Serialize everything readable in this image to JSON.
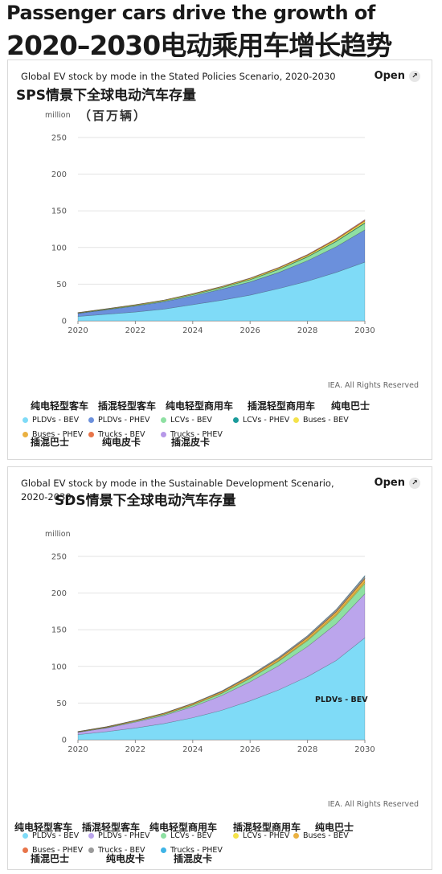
{
  "headline": {
    "line1": "Passenger cars drive the growth of",
    "line2": "2020–2030电动乘用车增长趋势"
  },
  "open_label": "Open",
  "open_icon": "external-link-icon",
  "rights": "IEA. All Rights Reserved",
  "chart_data": [
    {
      "type": "area",
      "title": "Global EV stock by mode in the Stated Policies Scenario, 2020-2030",
      "title_zh": "SPS情景下全球电动汽车存量",
      "ylabel": "million",
      "ylabel_zh": "（百万辆）",
      "stacked": true,
      "x": [
        2020,
        2021,
        2022,
        2023,
        2024,
        2025,
        2026,
        2027,
        2028,
        2029,
        2030
      ],
      "xticks": [
        "2020",
        "2022",
        "2024",
        "2026",
        "2028",
        "2030"
      ],
      "ylim": [
        0,
        250
      ],
      "yticks": [
        "0",
        "50",
        "100",
        "150",
        "200",
        "250"
      ],
      "grid": true,
      "legend_position": "bottom",
      "series": [
        {
          "name": "PLDVs - BEV",
          "color": "#7fdbf7",
          "values": [
            6,
            9,
            12,
            16,
            22,
            28,
            35,
            44,
            54,
            66,
            80
          ]
        },
        {
          "name": "PLDVs - PHEV",
          "color": "#6b90dc",
          "values": [
            4,
            6,
            8,
            10,
            12,
            15,
            18,
            22,
            28,
            35,
            44
          ]
        },
        {
          "name": "LCVs - BEV",
          "color": "#8ee0a2",
          "values": [
            0.4,
            0.6,
            0.8,
            1,
            1.5,
            2,
            3,
            4,
            5,
            7,
            9
          ]
        },
        {
          "name": "LCVs - PHEV",
          "color": "#1a9b9b",
          "values": [
            0.1,
            0.1,
            0.2,
            0.2,
            0.3,
            0.3,
            0.4,
            0.5,
            0.6,
            0.7,
            0.8
          ]
        },
        {
          "name": "Buses - BEV",
          "color": "#f4e24a",
          "values": [
            0.6,
            0.7,
            0.8,
            0.9,
            1,
            1.1,
            1.3,
            1.5,
            1.7,
            2,
            2.3
          ]
        },
        {
          "name": "Buses - PHEV",
          "color": "#eab142",
          "values": [
            0.05,
            0.05,
            0.06,
            0.07,
            0.08,
            0.09,
            0.1,
            0.12,
            0.14,
            0.16,
            0.2
          ]
        },
        {
          "name": "Trucks - BEV",
          "color": "#e8754a",
          "values": [
            0.05,
            0.05,
            0.1,
            0.1,
            0.2,
            0.3,
            0.5,
            0.7,
            0.9,
            1.2,
            1.5
          ]
        },
        {
          "name": "Trucks - PHEV",
          "color": "#b698e8",
          "values": [
            0.02,
            0.02,
            0.03,
            0.04,
            0.05,
            0.06,
            0.08,
            0.1,
            0.12,
            0.15,
            0.2
          ]
        }
      ],
      "legend_zh_top": [
        "纯电轻型客车",
        "插混轻型客车",
        "纯电轻型商用车",
        "插混轻型商用车",
        "纯电巴士"
      ],
      "legend_zh_bottom": [
        "插混巴士",
        "纯电皮卡",
        "插混皮卡"
      ]
    },
    {
      "type": "area",
      "title": "Global EV stock by mode in the Sustainable Development Scenario, 2020-2030",
      "title_zh": "SDS情景下全球电动汽车存量",
      "ylabel": "million",
      "stacked": true,
      "x": [
        2020,
        2021,
        2022,
        2023,
        2024,
        2025,
        2026,
        2027,
        2028,
        2029,
        2030
      ],
      "xticks": [
        "2020",
        "2022",
        "2024",
        "2026",
        "2028",
        "2030"
      ],
      "ylim": [
        0,
        250
      ],
      "yticks": [
        "0",
        "50",
        "100",
        "150",
        "200",
        "250"
      ],
      "grid": true,
      "legend_position": "bottom",
      "annotation": "PLDVs - BEV",
      "series": [
        {
          "name": "PLDVs - BEV",
          "color": "#7fdbf7",
          "values": [
            7,
            11,
            16,
            22,
            30,
            40,
            53,
            68,
            86,
            108,
            139
          ]
        },
        {
          "name": "PLDVs - PHEV",
          "color": "#bba5ec",
          "values": [
            3,
            5,
            8,
            11,
            15,
            20,
            26,
            33,
            41,
            50,
            60
          ]
        },
        {
          "name": "LCVs - BEV",
          "color": "#8ee0a2",
          "values": [
            0.4,
            0.7,
            1,
            1.5,
            2.2,
            3,
            4.5,
            6,
            8,
            11,
            14
          ]
        },
        {
          "name": "LCVs - PHEV",
          "color": "#f4e24a",
          "values": [
            0.1,
            0.1,
            0.2,
            0.3,
            0.4,
            0.5,
            0.7,
            0.9,
            1.2,
            1.6,
            2
          ]
        },
        {
          "name": "Buses - BEV",
          "color": "#eab142",
          "values": [
            0.6,
            0.8,
            1,
            1.2,
            1.5,
            1.8,
            2.2,
            2.6,
            3.1,
            3.7,
            4.5
          ]
        },
        {
          "name": "Buses - PHEV",
          "color": "#e8754a",
          "values": [
            0.05,
            0.06,
            0.08,
            0.1,
            0.12,
            0.15,
            0.2,
            0.25,
            0.3,
            0.4,
            0.5
          ]
        },
        {
          "name": "Trucks - BEV",
          "color": "#9a9a9a",
          "values": [
            0.05,
            0.1,
            0.2,
            0.3,
            0.5,
            0.8,
            1.2,
            1.6,
            2,
            2.6,
            3.2
          ]
        },
        {
          "name": "Trucks - PHEV",
          "color": "#3fb4e6",
          "values": [
            0.02,
            0.03,
            0.05,
            0.07,
            0.1,
            0.14,
            0.2,
            0.3,
            0.4,
            0.5,
            0.7
          ]
        }
      ],
      "legend_zh_top": [
        "纯电轻型客车",
        "插混轻型客车",
        "纯电轻型商用车",
        "插混轻型商用车",
        "纯电巴士"
      ],
      "legend_zh_bottom": [
        "插混巴士",
        "纯电皮卡",
        "插混皮卡"
      ]
    }
  ]
}
